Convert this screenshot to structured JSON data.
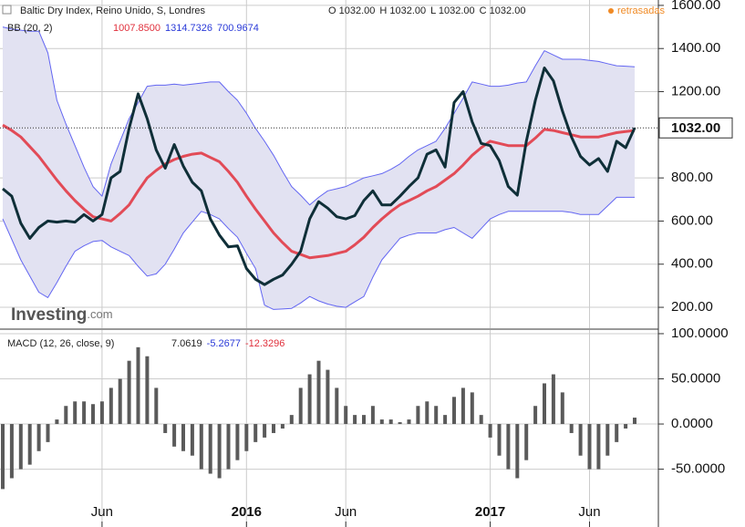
{
  "chart_data": [
    {
      "type": "line",
      "title": "Baltic Dry Index, Reino Unido, S, Londres",
      "ohlc_labels": [
        "O 1032.00",
        "H 1032.00",
        "L 1032.00",
        "C 1032.00"
      ],
      "status": "retrasadas",
      "logo": [
        "Investing",
        ".com"
      ],
      "indicator_label": "BB (20, 2)",
      "indicator_values": [
        "1007.8500",
        "1314.7326",
        "700.9674"
      ],
      "indicator_colors": [
        "#e0303c",
        "#2a3ad8",
        "#2a3ad8"
      ],
      "last_label": "1032.00",
      "band_fill": "#e2e2f2",
      "ylim": [
        103,
        1625
      ],
      "yticks": [
        {
          "value": 200,
          "label": "200.00"
        },
        {
          "value": 400,
          "label": "400.00"
        },
        {
          "value": 600,
          "label": "600.00"
        },
        {
          "value": 800,
          "label": "800.00"
        },
        {
          "value": 1200,
          "label": "1200.00"
        },
        {
          "value": 1400,
          "label": "1400.00"
        },
        {
          "value": 1600,
          "label": "1600.00"
        }
      ],
      "grid": true,
      "series": [
        {
          "color": "#6366f2",
          "width": 1,
          "values": [
            1500,
            1490,
            1485,
            1480,
            1480,
            1380,
            1160,
            1050,
            950,
            850,
            760,
            715,
            865,
            970,
            1075,
            1150,
            1225,
            1230,
            1230,
            1235,
            1230,
            1235,
            1240,
            1245,
            1245,
            1200,
            1160,
            1100,
            1030,
            970,
            905,
            830,
            760,
            720,
            675,
            710,
            740,
            750,
            760,
            780,
            800,
            810,
            820,
            840,
            865,
            900,
            930,
            950,
            970,
            1030,
            1100,
            1170,
            1245,
            1235,
            1225,
            1225,
            1230,
            1240,
            1245,
            1320,
            1390,
            1370,
            1350,
            1350,
            1350,
            1345,
            1340,
            1330,
            1320,
            1318,
            1315
          ]
        },
        {
          "color": "#6366f2",
          "width": 1,
          "values": [
            610,
            515,
            420,
            345,
            270,
            245,
            315,
            390,
            460,
            485,
            505,
            510,
            480,
            460,
            440,
            390,
            345,
            355,
            400,
            470,
            545,
            595,
            645,
            630,
            610,
            565,
            525,
            450,
            380,
            210,
            190,
            192,
            195,
            220,
            250,
            230,
            215,
            205,
            200,
            225,
            250,
            340,
            420,
            470,
            520,
            535,
            545,
            545,
            545,
            560,
            570,
            545,
            520,
            565,
            610,
            630,
            645,
            645,
            645,
            645,
            645,
            645,
            645,
            640,
            630,
            630,
            630,
            670,
            710,
            710,
            710
          ]
        },
        {
          "color": "#e24b57",
          "width": 3,
          "values": [
            1045,
            1020,
            990,
            945,
            900,
            845,
            790,
            740,
            695,
            655,
            620,
            610,
            600,
            635,
            675,
            740,
            800,
            835,
            865,
            885,
            900,
            910,
            915,
            895,
            875,
            830,
            780,
            715,
            655,
            600,
            545,
            500,
            460,
            445,
            430,
            435,
            440,
            450,
            460,
            490,
            525,
            570,
            610,
            645,
            675,
            695,
            715,
            740,
            760,
            790,
            820,
            860,
            905,
            940,
            970,
            960,
            950,
            950,
            950,
            985,
            1025,
            1020,
            1010,
            1000,
            990,
            990,
            990,
            1000,
            1010,
            1015,
            1020
          ]
        },
        {
          "color": "#0f2f38",
          "width": 3,
          "values": [
            750,
            715,
            590,
            520,
            570,
            600,
            595,
            600,
            595,
            630,
            600,
            630,
            800,
            830,
            1030,
            1190,
            1075,
            930,
            845,
            955,
            855,
            780,
            740,
            610,
            535,
            480,
            485,
            380,
            330,
            305,
            330,
            350,
            400,
            460,
            610,
            690,
            660,
            620,
            610,
            625,
            695,
            740,
            675,
            675,
            715,
            760,
            800,
            910,
            930,
            850,
            1150,
            1200,
            1060,
            960,
            950,
            880,
            760,
            720,
            970,
            1160,
            1310,
            1250,
            1110,
            990,
            900,
            860,
            890,
            830,
            970,
            940,
            1032
          ]
        }
      ]
    },
    {
      "type": "bar",
      "title": "MACD (12, 26, close, 9)",
      "indicator_values": [
        "7.0619",
        "-5.2677",
        "-12.3296"
      ],
      "indicator_colors": [
        "#222222",
        "#2a3ad8",
        "#e0303c"
      ],
      "color": "#5a5a5a",
      "ylim": [
        -114,
        104
      ],
      "yticks": [
        {
          "value": -50,
          "label": "-50.0000"
        },
        {
          "value": 0,
          "label": "0.0000"
        },
        {
          "value": 50,
          "label": "50.0000"
        },
        {
          "value": 100,
          "label": "100.0000"
        }
      ],
      "grid": true,
      "categories": [
        null,
        null,
        null,
        null,
        null,
        null,
        null,
        null,
        null,
        null,
        null,
        "Jun",
        null,
        null,
        null,
        null,
        null,
        null,
        null,
        null,
        null,
        null,
        null,
        null,
        null,
        null,
        null,
        "2016",
        null,
        null,
        null,
        null,
        null,
        null,
        null,
        null,
        null,
        null,
        "Jun",
        null,
        null,
        null,
        null,
        null,
        null,
        null,
        null,
        null,
        null,
        null,
        null,
        null,
        null,
        null,
        "2017",
        null,
        null,
        null,
        null,
        null,
        null,
        null,
        null,
        null,
        null,
        "Jun",
        null,
        null,
        null,
        null,
        null
      ],
      "values": [
        -72,
        -60,
        -50,
        -45,
        -30,
        -20,
        5,
        20,
        25,
        25,
        22,
        25,
        40,
        50,
        70,
        85,
        75,
        40,
        -10,
        -25,
        -30,
        -35,
        -50,
        -55,
        -60,
        -50,
        -40,
        -30,
        -20,
        -15,
        -10,
        -5,
        10,
        40,
        55,
        70,
        60,
        40,
        20,
        10,
        10,
        20,
        5,
        5,
        2,
        5,
        20,
        25,
        20,
        10,
        30,
        40,
        35,
        10,
        -15,
        -35,
        -50,
        -60,
        -40,
        20,
        45,
        55,
        35,
        -10,
        -35,
        -50,
        -50,
        -35,
        -20,
        -5,
        7.0619
      ]
    }
  ]
}
